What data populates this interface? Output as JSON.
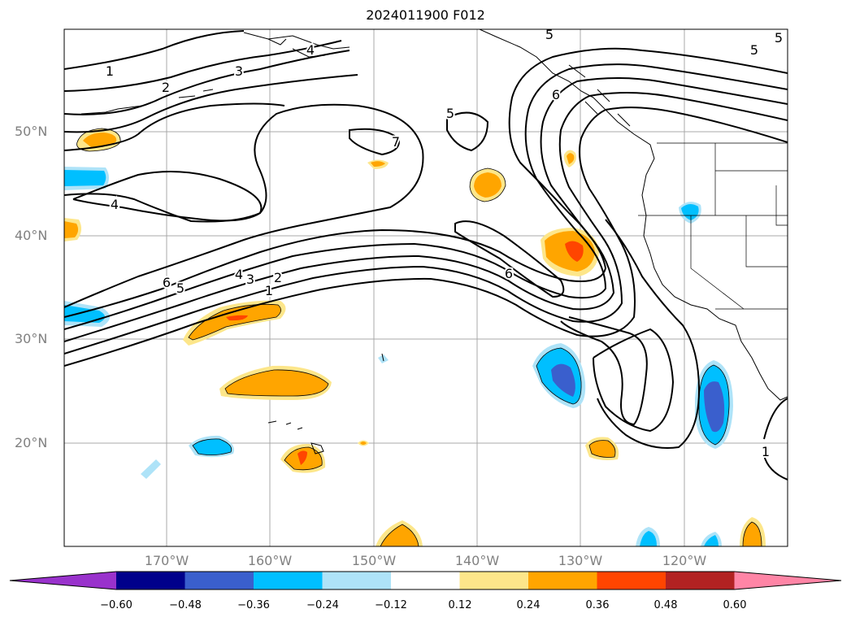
{
  "title": "2024011900 F012",
  "map": {
    "lat_labels": [
      "50°N",
      "40°N",
      "30°N",
      "20°N"
    ],
    "lon_labels": [
      "170°W",
      "160°W",
      "150°W",
      "140°W",
      "130°W",
      "120°W"
    ],
    "contour_labels": [
      "1",
      "2",
      "3",
      "4",
      "5",
      "6",
      "7",
      "5",
      "5",
      "5",
      "4",
      "6",
      "5",
      "4",
      "3",
      "2",
      "1",
      "6",
      "1"
    ]
  },
  "colorbar": {
    "ticks": [
      "−0.60",
      "−0.48",
      "−0.36",
      "−0.24",
      "−0.12",
      "0.12",
      "0.24",
      "0.36",
      "0.48",
      "0.60"
    ],
    "colors": [
      "#9932cc",
      "#00008b",
      "#3a5fcd",
      "#00bfff",
      "#aee3f8",
      "#ffffff",
      "#fde68a",
      "#ffa500",
      "#ff4500",
      "#b22222",
      "#ff85a6"
    ]
  }
}
